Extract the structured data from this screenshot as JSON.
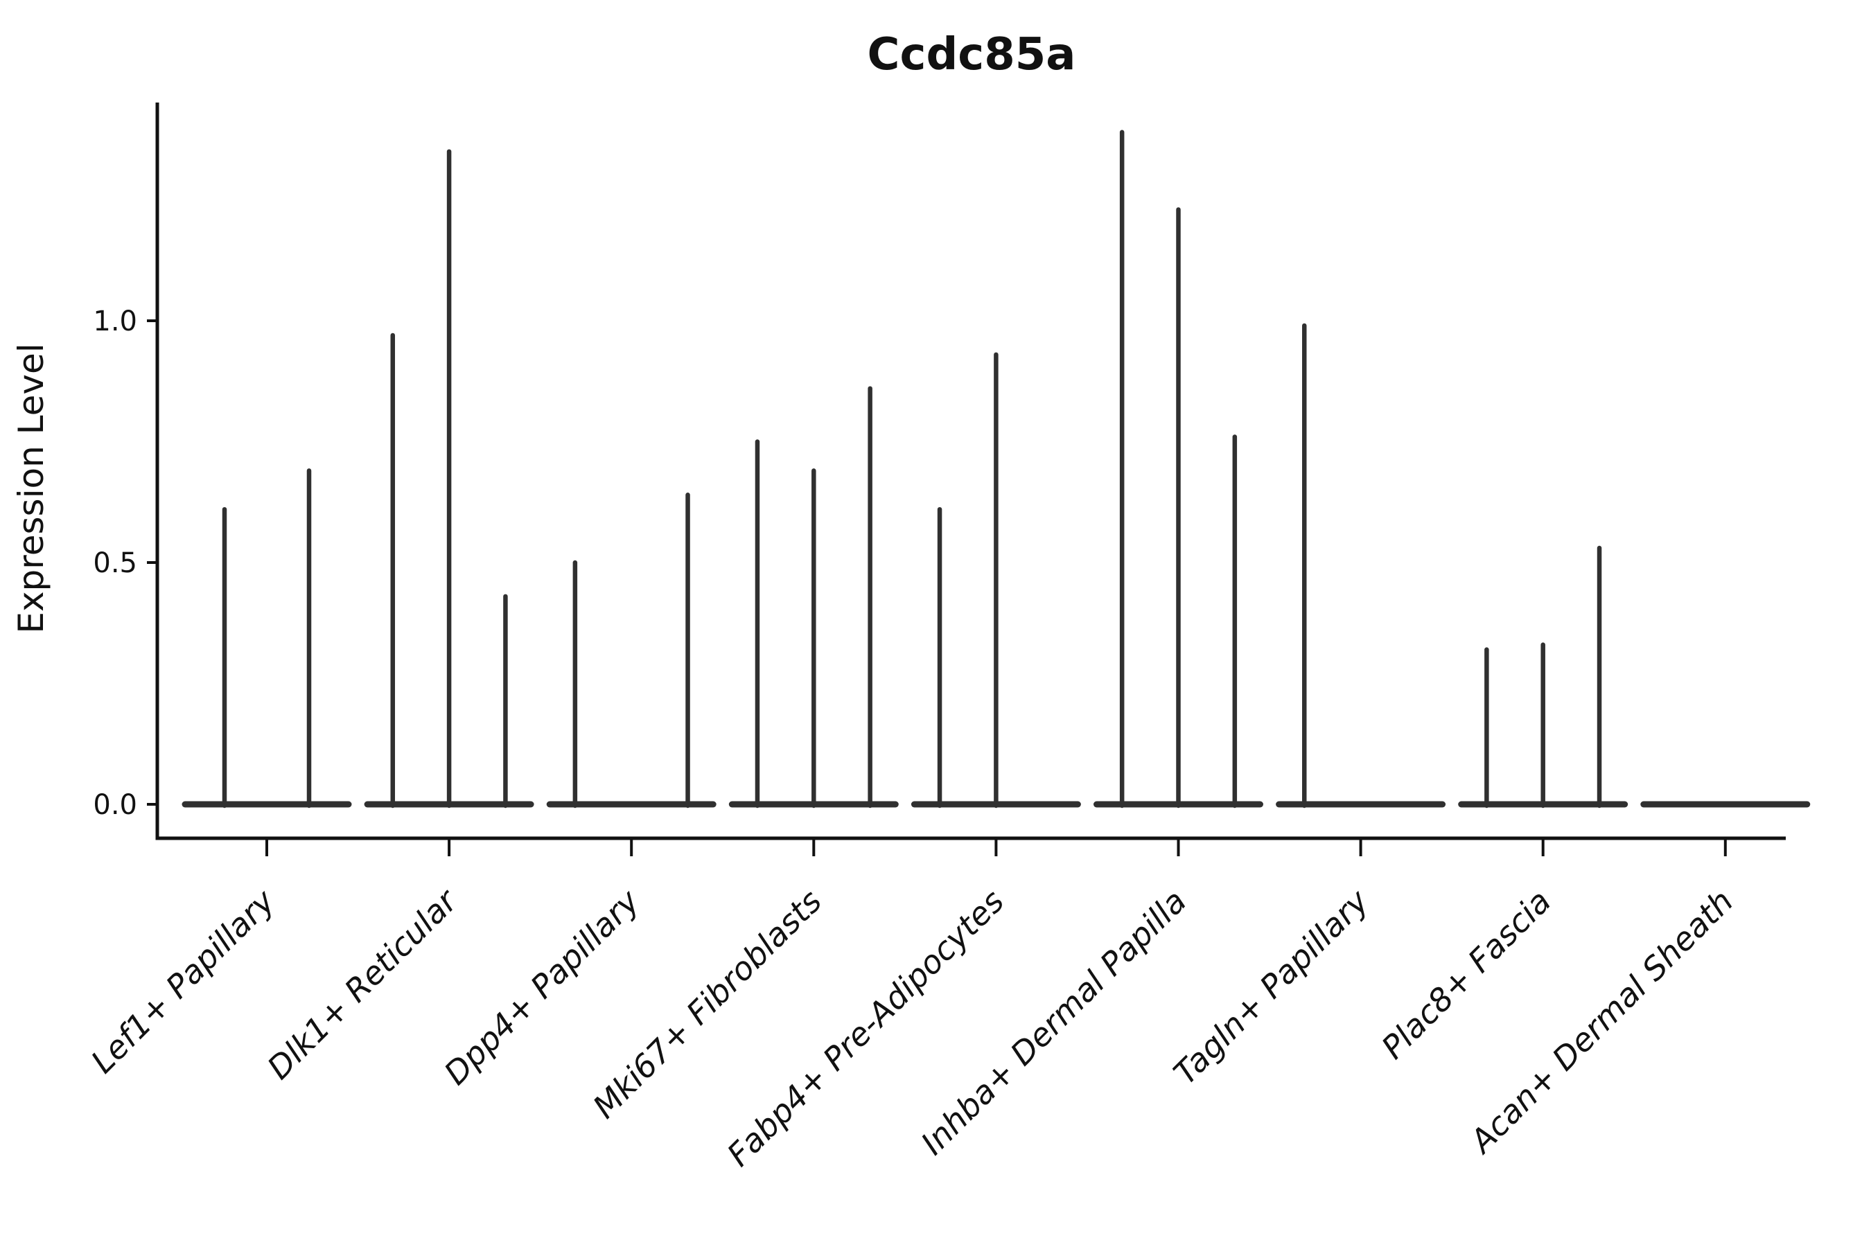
{
  "colors": {
    "spine": "#111111",
    "violin": "#303030",
    "text": "#111111",
    "background": "#ffffff"
  },
  "chart_data": {
    "type": "violin",
    "title": "Ccdc85a",
    "xlabel": "",
    "ylabel": "Expression Level",
    "ylim": [
      -0.07,
      1.45
    ],
    "yticks": [
      0.0,
      0.5,
      1.0
    ],
    "ytick_labels": [
      "0.0",
      "0.5",
      "1.0"
    ],
    "grid": false,
    "legend": "none",
    "categories": [
      {
        "label": "Lef1+ Papillary",
        "violins": [
          0.61,
          0.69
        ]
      },
      {
        "label": "Dlk1+ Reticular",
        "violins": [
          0.97,
          1.35,
          0.43
        ]
      },
      {
        "label": "Dpp4+ Papillary",
        "violins": [
          0.5,
          0.0,
          0.64
        ]
      },
      {
        "label": "Mki67+ Fibroblasts",
        "violins": [
          0.75,
          0.69,
          0.86
        ]
      },
      {
        "label": "Fabp4+ Pre-Adipocytes",
        "violins": [
          0.61,
          0.93,
          0.0
        ]
      },
      {
        "label": "Inhba+ Dermal Papilla",
        "violins": [
          1.39,
          1.23,
          0.76
        ]
      },
      {
        "label": "Tagln+ Papillary",
        "violins": [
          0.99,
          0.0,
          0.0
        ]
      },
      {
        "label": "Plac8+ Fascia",
        "violins": [
          0.32,
          0.33,
          0.53
        ]
      },
      {
        "label": "Acan+ Dermal Sheath",
        "violins": [
          0.0,
          0.0,
          0.0
        ]
      }
    ]
  }
}
